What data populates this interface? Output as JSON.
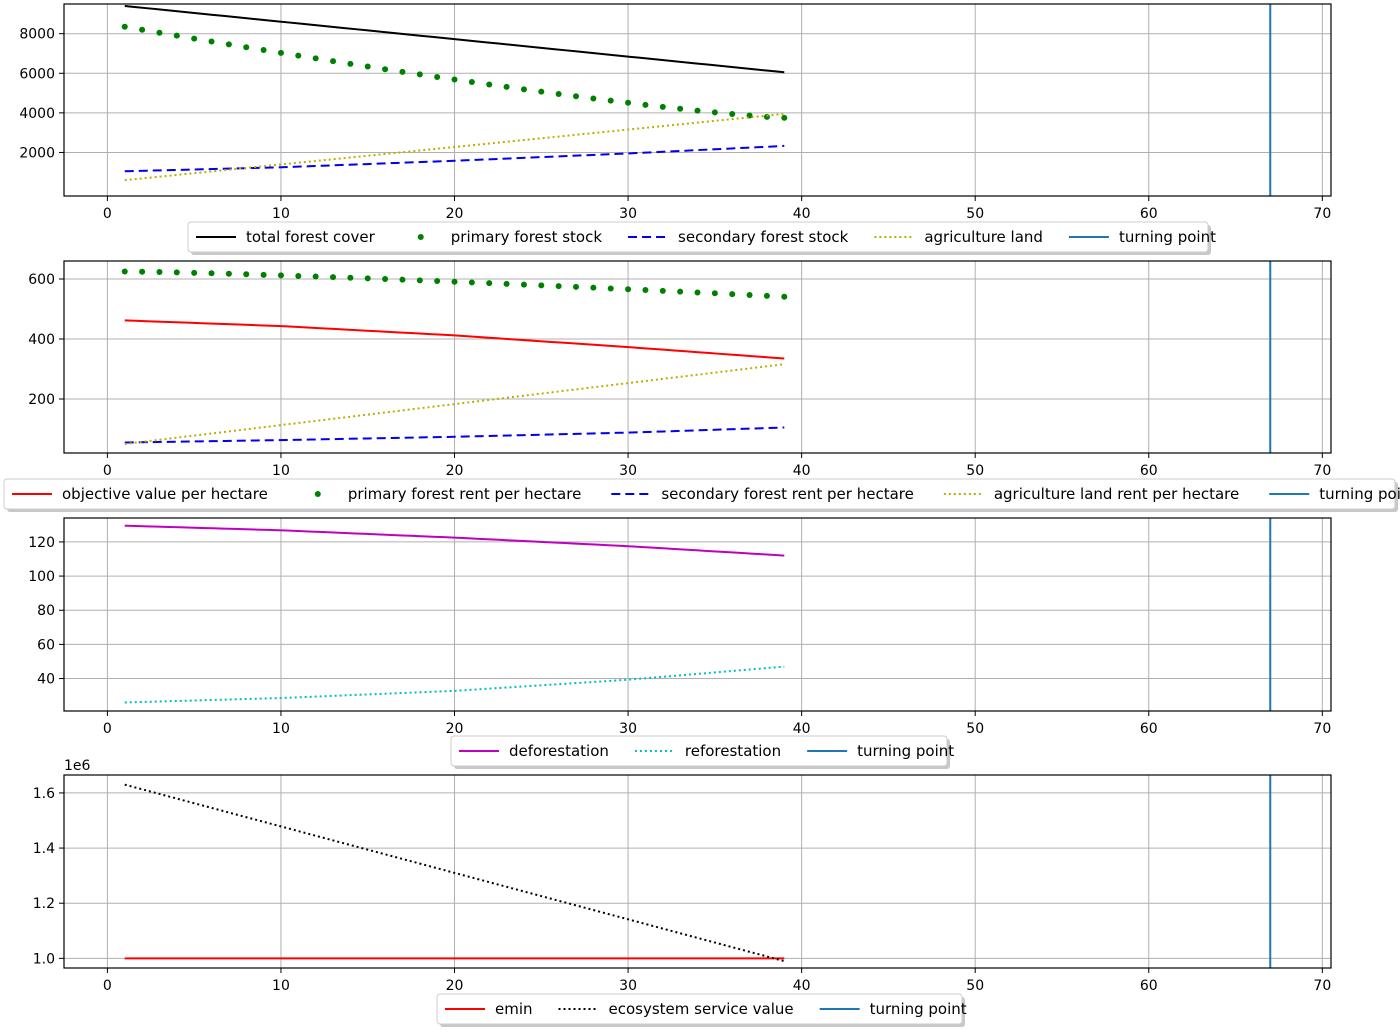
{
  "chart_data": [
    {
      "type": "line",
      "xlim": [
        -2.5,
        70.5
      ],
      "ylim": [
        -200,
        9500
      ],
      "xticks": [
        "0",
        "10",
        "20",
        "30",
        "40",
        "50",
        "60",
        "70"
      ],
      "yticks": [
        "2000",
        "4000",
        "6000",
        "8000"
      ],
      "grid": true,
      "legend_placement": "bottom-center",
      "turning_point_x": 67,
      "series": [
        {
          "name": "total forest cover",
          "style": "solid",
          "color": "#000000",
          "x": [
            1,
            39
          ],
          "y": [
            9400,
            6050
          ]
        },
        {
          "name": "primary forest stock",
          "style": "dots",
          "color": "#008000",
          "x": [
            1,
            39
          ],
          "y": [
            8350,
            3750
          ],
          "curve": "convex",
          "n": 39
        },
        {
          "name": "secondary forest stock",
          "style": "dashed",
          "color": "#0000ee",
          "x": [
            1,
            10,
            20,
            30,
            39
          ],
          "y": [
            1050,
            1250,
            1580,
            1950,
            2330
          ]
        },
        {
          "name": "agriculture land",
          "style": "dotted",
          "color": "#b8b000",
          "x": [
            1,
            39
          ],
          "y": [
            600,
            3950
          ]
        },
        {
          "name": "turning point",
          "style": "vline",
          "color": "#1f77b4",
          "x": [
            67
          ]
        }
      ]
    },
    {
      "type": "line",
      "xlim": [
        -2.5,
        70.5
      ],
      "ylim": [
        20,
        660
      ],
      "xticks": [
        "0",
        "10",
        "20",
        "30",
        "40",
        "50",
        "60",
        "70"
      ],
      "yticks": [
        "200",
        "400",
        "600"
      ],
      "grid": true,
      "legend_placement": "bottom-center",
      "turning_point_x": 67,
      "series": [
        {
          "name": "objective value per hectare",
          "style": "solid",
          "color": "#ff0000",
          "x": [
            1,
            10,
            20,
            30,
            39
          ],
          "y": [
            462,
            443,
            412,
            373,
            335
          ]
        },
        {
          "name": "primary forest rent per hectare",
          "style": "dots",
          "color": "#008000",
          "x": [
            1,
            39
          ],
          "y": [
            625,
            541
          ],
          "curve": "concave",
          "n": 39
        },
        {
          "name": "secondary forest rent per hectare",
          "style": "dashed",
          "color": "#0000ee",
          "x": [
            1,
            10,
            20,
            30,
            39
          ],
          "y": [
            55,
            63,
            74,
            88,
            105
          ]
        },
        {
          "name": "agriculture land rent per hectare",
          "style": "dotted",
          "color": "#b8b000",
          "x": [
            1,
            39
          ],
          "y": [
            50,
            316
          ]
        },
        {
          "name": "turning point",
          "style": "vline",
          "color": "#1f77b4",
          "x": [
            67
          ]
        }
      ]
    },
    {
      "type": "line",
      "xlim": [
        -2.5,
        70.5
      ],
      "ylim": [
        21,
        134
      ],
      "xticks": [
        "0",
        "10",
        "20",
        "30",
        "40",
        "50",
        "60",
        "70"
      ],
      "yticks": [
        "40",
        "60",
        "80",
        "100",
        "120"
      ],
      "grid": true,
      "legend_placement": "bottom-center",
      "turning_point_x": 67,
      "series": [
        {
          "name": "deforestation",
          "style": "solid",
          "color": "#bf00bf",
          "x": [
            1,
            10,
            20,
            30,
            39
          ],
          "y": [
            129.5,
            126.8,
            122.5,
            117.5,
            112
          ]
        },
        {
          "name": "reforestation",
          "style": "dotted",
          "color": "#00bfbf",
          "x": [
            1,
            10,
            20,
            30,
            39
          ],
          "y": [
            26,
            28.6,
            32.8,
            39.3,
            47
          ]
        },
        {
          "name": "turning point",
          "style": "vline",
          "color": "#1f77b4",
          "x": [
            67
          ]
        }
      ]
    },
    {
      "type": "line",
      "xlim": [
        -2.5,
        70.5
      ],
      "ylim": [
        0.965,
        1.665
      ],
      "xticks": [
        "0",
        "10",
        "20",
        "30",
        "40",
        "50",
        "60",
        "70"
      ],
      "yticks": [
        "1.0",
        "1.2",
        "1.4",
        "1.6"
      ],
      "offset_label": "1e6",
      "grid": true,
      "legend_placement": "bottom-center",
      "turning_point_x": 67,
      "series": [
        {
          "name": "emin",
          "style": "solid",
          "color": "#ff0000",
          "x": [
            1,
            39
          ],
          "y": [
            1.0,
            1.0
          ]
        },
        {
          "name": "ecosystem service value",
          "style": "dotted",
          "color": "#000000",
          "x": [
            1,
            39
          ],
          "y": [
            1.63,
            0.99
          ]
        },
        {
          "name": "turning point",
          "style": "vline",
          "color": "#1f77b4",
          "x": [
            67
          ]
        }
      ]
    }
  ]
}
